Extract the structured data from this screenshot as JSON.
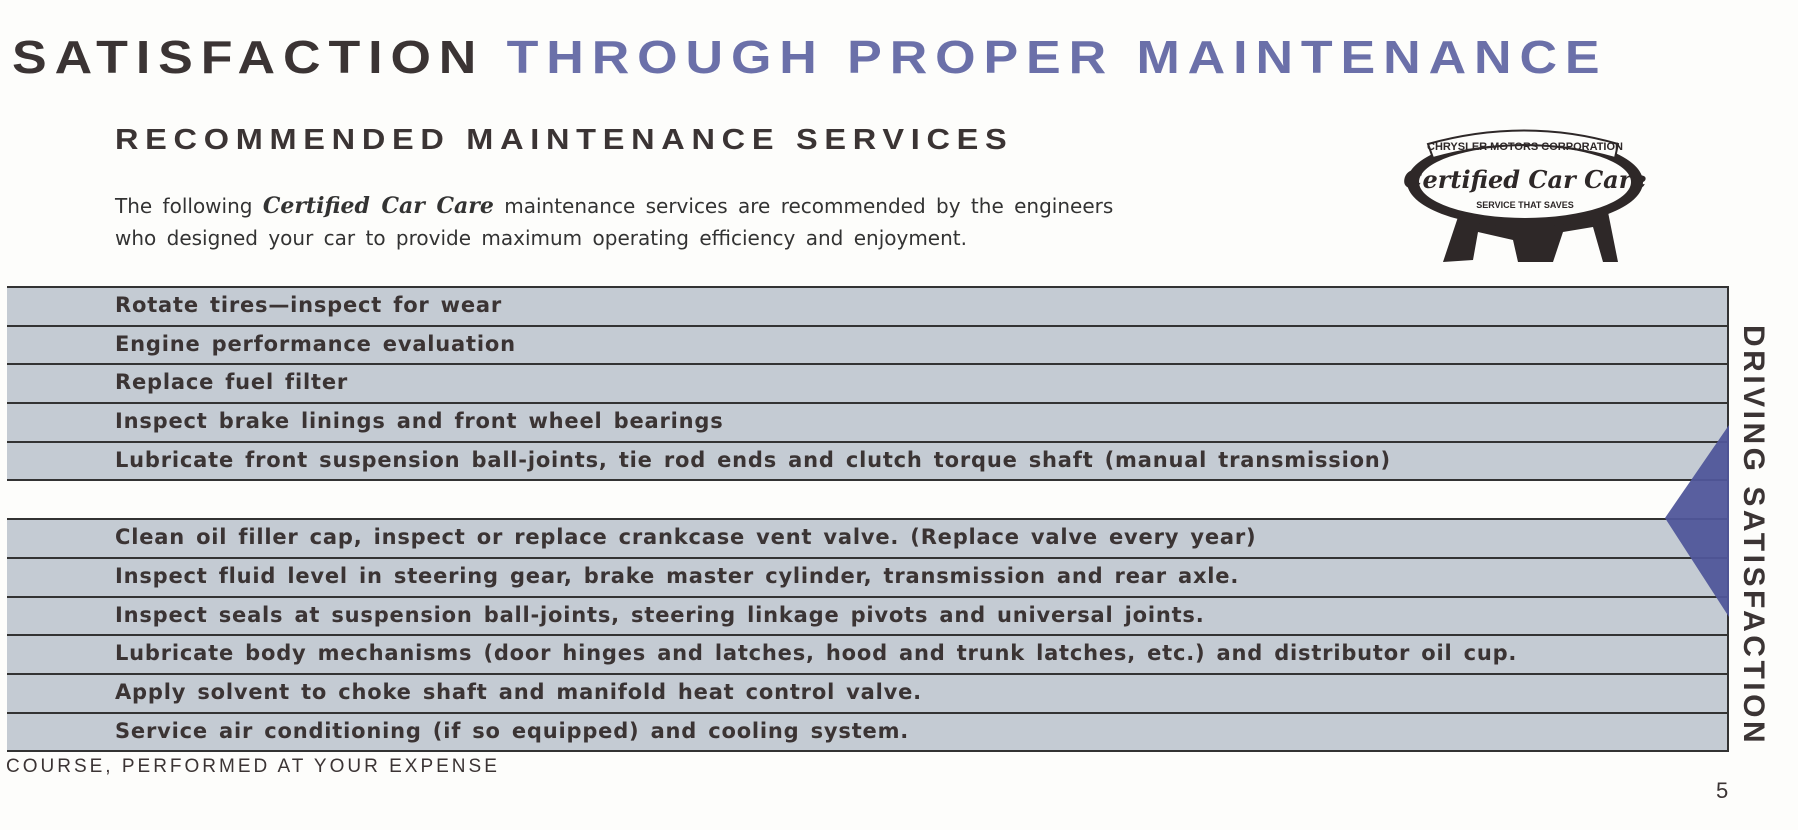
{
  "header": {
    "title_part1": "SATISFACTION",
    "title_part2": "THROUGH PROPER MAINTENANCE",
    "subtitle": "RECOMMENDED MAINTENANCE SERVICES"
  },
  "intro": {
    "line1_before": "The following ",
    "line1_script": "Certified Car Care",
    "line1_after": " maintenance services are recommended by the engineers",
    "line2": "who designed your car to provide maximum operating efficiency and enjoyment."
  },
  "logo": {
    "top_text": "CHRYSLER MOTORS CORPORATION",
    "script_text": "Certified Car Care",
    "bottom_text": "SERVICE THAT SAVES"
  },
  "services": [
    "Rotate tires—inspect for wear",
    "Engine performance evaluation",
    "Replace fuel filter",
    "Inspect brake linings and front wheel bearings",
    "Lubricate front suspension ball-joints, tie rod ends and clutch torque shaft (manual transmission)",
    "",
    "Clean oil filler cap, inspect or replace crankcase vent valve. (Replace valve every year)",
    "Inspect fluid level in steering gear, brake master cylinder, transmission and rear axle.",
    "Inspect seals at suspension ball-joints, steering linkage pivots and universal joints.",
    "Lubricate body mechanisms (door hinges and latches, hood and trunk latches, etc.) and distributor oil cup.",
    "Apply solvent to choke shaft and manifold heat control valve.",
    "Service air conditioning (if so equipped) and cooling system."
  ],
  "footer": "COURSE, PERFORMED AT YOUR EXPENSE",
  "side_tab": "DRIVING SATISFACTION",
  "page_number": "5",
  "colors": {
    "dark": "#3b3434",
    "accent_blue": "#6b70a9",
    "table_bg": "#c4cbd3",
    "tab_triangle": "#50569a"
  }
}
